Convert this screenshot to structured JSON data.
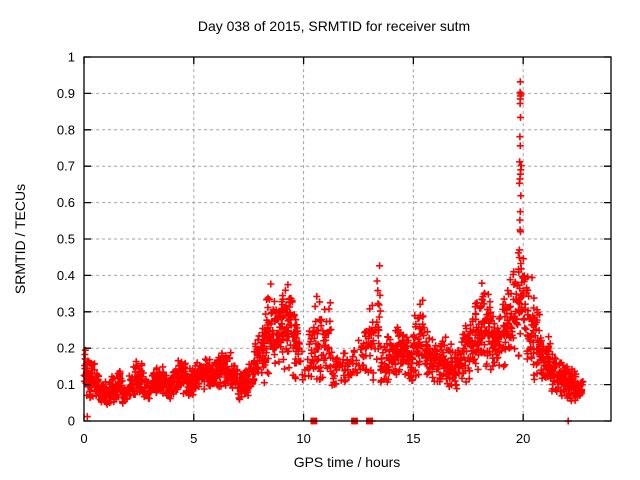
{
  "window": {
    "background_color": "#ffffff"
  },
  "chart": {
    "title": "Day 038 of 2015, SRMTID for receiver sutm",
    "xlabel": "GPS time / hours",
    "ylabel": "SRMTID / TECUs"
  },
  "chart_data": {
    "type": "scatter",
    "title": "Day 038 of 2015, SRMTID for receiver sutm",
    "xlabel": "GPS time / hours",
    "ylabel": "SRMTID / TECUs",
    "xlim": [
      0,
      24
    ],
    "ylim": [
      0,
      1
    ],
    "xtick_values": [
      0,
      5,
      10,
      15,
      20
    ],
    "xtick_labels": [
      "0",
      "5",
      "10",
      "15",
      "20"
    ],
    "ytick_values": [
      0,
      0.1,
      0.2,
      0.3,
      0.4,
      0.5,
      0.6,
      0.7,
      0.8,
      0.9,
      1
    ],
    "ytick_labels": [
      "0",
      "0.1",
      "0.2",
      "0.3",
      "0.4",
      "0.5",
      "0.6",
      "0.7",
      "0.8",
      "0.9",
      "1"
    ],
    "grid": true,
    "grid_color": "#a6a6a6",
    "border_color": "#000000",
    "marker": "plus",
    "marker_color": "#ff0000",
    "marker_size_px": 7,
    "legend": "none",
    "series_name": "SRMTID",
    "data_time_range_hours": [
      0,
      22.8
    ],
    "band_bins_format": [
      "t_start_hours(bin width 0.25h)",
      "value_low_TECU",
      "value_high_TECU",
      "point_count"
    ],
    "band_bins": [
      [
        0.0,
        0.05,
        0.21,
        34
      ],
      [
        0.25,
        0.05,
        0.18,
        28
      ],
      [
        0.5,
        0.05,
        0.15,
        24
      ],
      [
        0.75,
        0.04,
        0.12,
        24
      ],
      [
        1.0,
        0.04,
        0.11,
        22
      ],
      [
        1.25,
        0.05,
        0.14,
        22
      ],
      [
        1.5,
        0.06,
        0.15,
        22
      ],
      [
        1.75,
        0.04,
        0.1,
        20
      ],
      [
        2.0,
        0.05,
        0.13,
        22
      ],
      [
        2.25,
        0.06,
        0.17,
        24
      ],
      [
        2.5,
        0.06,
        0.16,
        24
      ],
      [
        2.75,
        0.05,
        0.12,
        22
      ],
      [
        3.0,
        0.06,
        0.15,
        24
      ],
      [
        3.25,
        0.07,
        0.17,
        26
      ],
      [
        3.5,
        0.06,
        0.15,
        24
      ],
      [
        3.75,
        0.05,
        0.13,
        22
      ],
      [
        4.0,
        0.06,
        0.16,
        24
      ],
      [
        4.25,
        0.08,
        0.18,
        26
      ],
      [
        4.5,
        0.07,
        0.17,
        26
      ],
      [
        4.75,
        0.06,
        0.15,
        24
      ],
      [
        5.0,
        0.07,
        0.18,
        26
      ],
      [
        5.25,
        0.08,
        0.17,
        24
      ],
      [
        5.5,
        0.08,
        0.19,
        26
      ],
      [
        5.75,
        0.08,
        0.18,
        24
      ],
      [
        6.0,
        0.08,
        0.19,
        26
      ],
      [
        6.25,
        0.09,
        0.2,
        26
      ],
      [
        6.5,
        0.08,
        0.19,
        26
      ],
      [
        6.75,
        0.06,
        0.16,
        24
      ],
      [
        7.0,
        0.05,
        0.14,
        24
      ],
      [
        7.25,
        0.06,
        0.15,
        24
      ],
      [
        7.5,
        0.08,
        0.18,
        24
      ],
      [
        7.75,
        0.1,
        0.25,
        26
      ],
      [
        8.0,
        0.1,
        0.3,
        28
      ],
      [
        8.25,
        0.12,
        0.36,
        30
      ],
      [
        8.5,
        0.12,
        0.38,
        30
      ],
      [
        8.75,
        0.12,
        0.34,
        28
      ],
      [
        9.0,
        0.13,
        0.4,
        30
      ],
      [
        9.25,
        0.13,
        0.43,
        30
      ],
      [
        9.5,
        0.1,
        0.36,
        26
      ],
      [
        9.75,
        0.08,
        0.24,
        12
      ],
      [
        10.0,
        0.1,
        0.18,
        6
      ],
      [
        10.25,
        0.08,
        0.3,
        18
      ],
      [
        10.5,
        0.08,
        0.36,
        22
      ],
      [
        10.75,
        0.1,
        0.35,
        20
      ],
      [
        11.0,
        0.08,
        0.33,
        20
      ],
      [
        11.25,
        0.08,
        0.22,
        14
      ],
      [
        11.5,
        0.1,
        0.2,
        10
      ],
      [
        11.75,
        0.1,
        0.22,
        14
      ],
      [
        12.0,
        0.1,
        0.2,
        10
      ],
      [
        12.25,
        0.08,
        0.2,
        8
      ],
      [
        12.5,
        0.1,
        0.25,
        12
      ],
      [
        12.75,
        0.1,
        0.28,
        14
      ],
      [
        13.0,
        0.1,
        0.35,
        18
      ],
      [
        13.25,
        0.1,
        0.46,
        20
      ],
      [
        13.5,
        0.08,
        0.22,
        18
      ],
      [
        13.75,
        0.1,
        0.24,
        22
      ],
      [
        14.0,
        0.1,
        0.25,
        24
      ],
      [
        14.25,
        0.12,
        0.26,
        24
      ],
      [
        14.5,
        0.12,
        0.28,
        24
      ],
      [
        14.75,
        0.1,
        0.24,
        24
      ],
      [
        15.0,
        0.12,
        0.3,
        24
      ],
      [
        15.25,
        0.12,
        0.37,
        26
      ],
      [
        15.5,
        0.1,
        0.26,
        24
      ],
      [
        15.75,
        0.1,
        0.24,
        24
      ],
      [
        16.0,
        0.08,
        0.22,
        24
      ],
      [
        16.25,
        0.1,
        0.24,
        24
      ],
      [
        16.5,
        0.08,
        0.22,
        24
      ],
      [
        16.75,
        0.08,
        0.2,
        22
      ],
      [
        17.0,
        0.1,
        0.24,
        24
      ],
      [
        17.25,
        0.1,
        0.28,
        24
      ],
      [
        17.5,
        0.1,
        0.3,
        26
      ],
      [
        17.75,
        0.12,
        0.34,
        26
      ],
      [
        18.0,
        0.12,
        0.42,
        28
      ],
      [
        18.25,
        0.12,
        0.38,
        28
      ],
      [
        18.5,
        0.12,
        0.32,
        26
      ],
      [
        18.75,
        0.12,
        0.34,
        26
      ],
      [
        19.0,
        0.14,
        0.36,
        26
      ],
      [
        19.25,
        0.14,
        0.4,
        26
      ],
      [
        19.5,
        0.15,
        0.48,
        28
      ],
      [
        19.75,
        0.15,
        0.5,
        26
      ],
      [
        20.0,
        0.15,
        0.46,
        26
      ],
      [
        20.25,
        0.12,
        0.4,
        24
      ],
      [
        20.5,
        0.1,
        0.32,
        24
      ],
      [
        20.75,
        0.1,
        0.28,
        24
      ],
      [
        21.0,
        0.08,
        0.24,
        26
      ],
      [
        21.25,
        0.08,
        0.2,
        26
      ],
      [
        21.5,
        0.07,
        0.18,
        28
      ],
      [
        21.75,
        0.06,
        0.16,
        30
      ],
      [
        22.0,
        0.05,
        0.15,
        32
      ],
      [
        22.25,
        0.05,
        0.14,
        30
      ],
      [
        22.5,
        0.05,
        0.13,
        20
      ]
    ],
    "spike_points": [
      [
        19.83,
        0.47
      ],
      [
        19.86,
        0.525
      ],
      [
        19.88,
        0.52
      ],
      [
        19.85,
        0.552
      ],
      [
        19.87,
        0.575
      ],
      [
        19.89,
        0.619
      ],
      [
        19.83,
        0.653
      ],
      [
        19.85,
        0.665
      ],
      [
        19.87,
        0.678
      ],
      [
        19.89,
        0.69
      ],
      [
        19.91,
        0.702
      ],
      [
        19.84,
        0.712
      ],
      [
        19.87,
        0.756
      ],
      [
        19.85,
        0.781
      ],
      [
        19.88,
        0.834
      ],
      [
        19.86,
        0.872
      ],
      [
        19.87,
        0.885
      ],
      [
        19.88,
        0.893
      ],
      [
        19.9,
        0.898
      ],
      [
        19.86,
        0.903
      ],
      [
        19.87,
        0.932
      ]
    ],
    "zero_plus_points": [
      [
        0.15,
        0.012
      ],
      [
        13.12,
        0.0
      ],
      [
        22.05,
        0.0
      ]
    ],
    "zero_square_points": [
      [
        10.47,
        0.0
      ],
      [
        12.32,
        0.0
      ],
      [
        13.0,
        0.0
      ]
    ]
  }
}
